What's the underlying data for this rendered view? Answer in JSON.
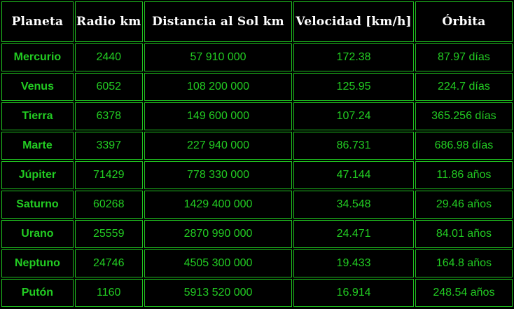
{
  "table": {
    "headers": [
      "Planeta",
      "Radio km",
      "Distancia al Sol km",
      "Velocidad [km/h]",
      "Órbita"
    ],
    "rows": [
      [
        "Mercurio",
        "2440",
        "57 910 000",
        "172.38",
        "87.97 días"
      ],
      [
        "Venus",
        "6052",
        "108 200 000",
        "125.95",
        "224.7 días"
      ],
      [
        "Tierra",
        "6378",
        "149 600 000",
        "107.24",
        "365.256 días"
      ],
      [
        "Marte",
        "3397",
        "227 940 000",
        "86.731",
        "686.98 días"
      ],
      [
        "Júpiter",
        "71429",
        "778 330 000",
        "47.144",
        "11.86 años"
      ],
      [
        "Saturno",
        "60268",
        "1429 400 000",
        "34.548",
        "29.46 años"
      ],
      [
        "Urano",
        "25559",
        "2870 990 000",
        "24.471",
        "84.01 años"
      ],
      [
        "Neptuno",
        "24746",
        "4505 300 000",
        "19.433",
        "164.8 años"
      ],
      [
        "Putón",
        "1160",
        "5913 520 000",
        "16.914",
        "248.54 años"
      ]
    ]
  },
  "colors": {
    "background": "#000000",
    "border": "#1fbf1f",
    "header_text": "#ffffff",
    "cell_text": "#22cc22"
  }
}
